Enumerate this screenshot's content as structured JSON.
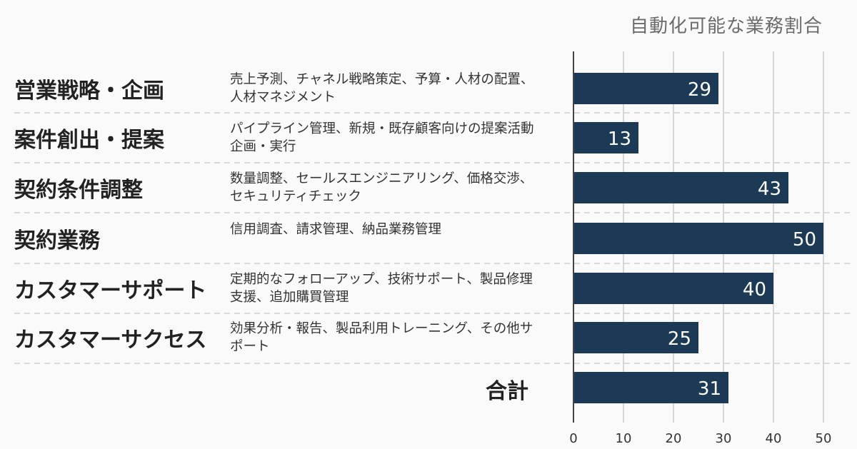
{
  "chart_data": {
    "type": "bar",
    "orientation": "horizontal",
    "title": "自動化可能な業務割合",
    "xlim": [
      0,
      50
    ],
    "xticks": [
      0,
      10,
      20,
      30,
      40,
      50
    ],
    "grid": "vertical",
    "bar_color": "#1c3a56",
    "rows": [
      {
        "category": "営業戦略・企画",
        "description": "売上予測、チャネル戦略策定、予算・人材の配置、人材マネジメント",
        "value": 29
      },
      {
        "category": "案件創出・提案",
        "description": "パイプライン管理、新規・既存顧客向けの提案活動企画・実行",
        "value": 13
      },
      {
        "category": "契約条件調整",
        "description": "数量調整、セールスエンジニアリング、価格交渉、セキュリティチェック",
        "value": 43
      },
      {
        "category": "契約業務",
        "description": "信用調査、請求管理、納品業務管理",
        "value": 50
      },
      {
        "category": "カスタマーサポート",
        "description": "定期的なフォローアップ、技術サポート、製品修理支援、追加購買管理",
        "value": 40
      },
      {
        "category": "カスタマーサクセス",
        "description": "効果分析・報告、製品利用トレーニング、その他サポート",
        "value": 25
      },
      {
        "category": "合計",
        "description": "",
        "value": 31
      }
    ]
  }
}
